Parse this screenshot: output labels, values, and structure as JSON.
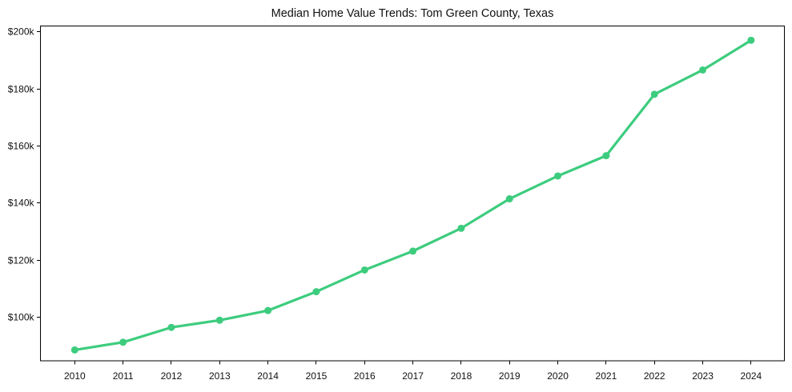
{
  "chart_data": {
    "type": "line",
    "title": "Median Home Value Trends: Tom Green County, Texas",
    "xlabel": "",
    "ylabel": "",
    "categories": [
      2010,
      2011,
      2012,
      2013,
      2014,
      2015,
      2016,
      2017,
      2018,
      2019,
      2020,
      2021,
      2022,
      2023,
      2024
    ],
    "x_tick_labels": [
      "2010",
      "2011",
      "2012",
      "2013",
      "2014",
      "2015",
      "2016",
      "2017",
      "2018",
      "2019",
      "2020",
      "2021",
      "2022",
      "2023",
      "2024"
    ],
    "values": [
      88600,
      91300,
      96500,
      99000,
      102400,
      109000,
      116600,
      123200,
      131200,
      141500,
      149500,
      156600,
      178100,
      186600,
      197000
    ],
    "y_ticks": [
      100000,
      120000,
      140000,
      160000,
      180000,
      200000
    ],
    "y_tick_labels": [
      "$100k",
      "$120k",
      "$140k",
      "$160k",
      "$180k",
      "$200k"
    ],
    "xlim": [
      2009.29,
      2024.69
    ],
    "ylim": [
      84800,
      202000
    ],
    "grid": false,
    "legend": "none",
    "marker": "circle",
    "line_color": "#3dcc7e",
    "text_color": "#111111",
    "axis_color": "#000000",
    "background_color": "#ffffff"
  }
}
